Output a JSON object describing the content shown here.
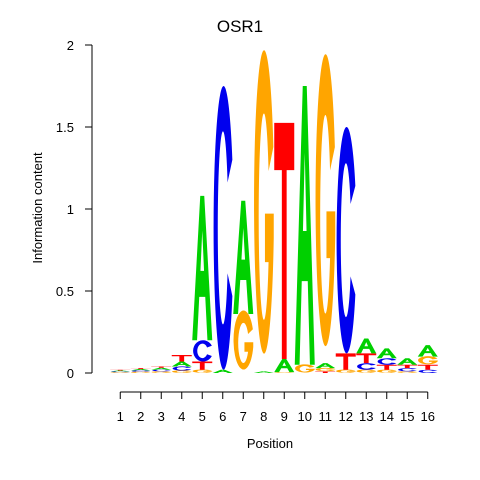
{
  "chart_data": {
    "type": "sequence_logo",
    "title": "OSR1",
    "xlabel": "Position",
    "ylabel": "Information content",
    "ylim": [
      0,
      2
    ],
    "yticks": [
      "0",
      "0.5",
      "1",
      "1.5",
      "2"
    ],
    "positions": [
      "1",
      "2",
      "3",
      "4",
      "5",
      "6",
      "7",
      "8",
      "9",
      "10",
      "11",
      "12",
      "13",
      "14",
      "15",
      "16"
    ],
    "colors": {
      "A": "#00d000",
      "C": "#0000ee",
      "G": "#ffa500",
      "T": "#ff0000"
    },
    "columns": [
      [
        {
          "base": "G",
          "height": 0.005
        },
        {
          "base": "C",
          "height": 0.005
        },
        {
          "base": "A",
          "height": 0.005
        },
        {
          "base": "T",
          "height": 0.005
        }
      ],
      [
        {
          "base": "G",
          "height": 0.008
        },
        {
          "base": "C",
          "height": 0.008
        },
        {
          "base": "A",
          "height": 0.008
        },
        {
          "base": "T",
          "height": 0.006
        }
      ],
      [
        {
          "base": "G",
          "height": 0.01
        },
        {
          "base": "C",
          "height": 0.01
        },
        {
          "base": "A",
          "height": 0.012
        },
        {
          "base": "T",
          "height": 0.008
        }
      ],
      [
        {
          "base": "G",
          "height": 0.015
        },
        {
          "base": "C",
          "height": 0.025
        },
        {
          "base": "A",
          "height": 0.03
        },
        {
          "base": "T",
          "height": 0.04
        }
      ],
      [
        {
          "base": "G",
          "height": 0.02
        },
        {
          "base": "T",
          "height": 0.05
        },
        {
          "base": "C",
          "height": 0.13
        },
        {
          "base": "A",
          "height": 0.88
        }
      ],
      [
        {
          "base": "A",
          "height": 0.02
        },
        {
          "base": "C",
          "height": 1.73
        }
      ],
      [
        {
          "base": "G",
          "height": 0.36
        },
        {
          "base": "A",
          "height": 0.69
        }
      ],
      [
        {
          "base": "A",
          "height": 0.01
        },
        {
          "base": "G",
          "height": 1.85
        }
      ],
      [
        {
          "base": "G",
          "height": 0.005
        },
        {
          "base": "A",
          "height": 0.08
        },
        {
          "base": "T",
          "height": 1.44
        }
      ],
      [
        {
          "base": "G",
          "height": 0.05
        },
        {
          "base": "A",
          "height": 1.7
        }
      ],
      [
        {
          "base": "T",
          "height": 0.01
        },
        {
          "base": "G",
          "height": 0.02
        },
        {
          "base": "A",
          "height": 0.03
        },
        {
          "base": "G",
          "height": 1.78
        }
      ],
      [
        {
          "base": "G",
          "height": 0.02
        },
        {
          "base": "T",
          "height": 0.1
        },
        {
          "base": "C",
          "height": 1.38
        }
      ],
      [
        {
          "base": "G",
          "height": 0.02
        },
        {
          "base": "C",
          "height": 0.04
        },
        {
          "base": "T",
          "height": 0.06
        },
        {
          "base": "A",
          "height": 0.09
        }
      ],
      [
        {
          "base": "G",
          "height": 0.02
        },
        {
          "base": "T",
          "height": 0.03
        },
        {
          "base": "C",
          "height": 0.04
        },
        {
          "base": "A",
          "height": 0.06
        }
      ],
      [
        {
          "base": "G",
          "height": 0.01
        },
        {
          "base": "C",
          "height": 0.02
        },
        {
          "base": "T",
          "height": 0.02
        },
        {
          "base": "A",
          "height": 0.04
        }
      ],
      [
        {
          "base": "C",
          "height": 0.02
        },
        {
          "base": "T",
          "height": 0.03
        },
        {
          "base": "G",
          "height": 0.05
        },
        {
          "base": "A",
          "height": 0.07
        }
      ]
    ]
  }
}
